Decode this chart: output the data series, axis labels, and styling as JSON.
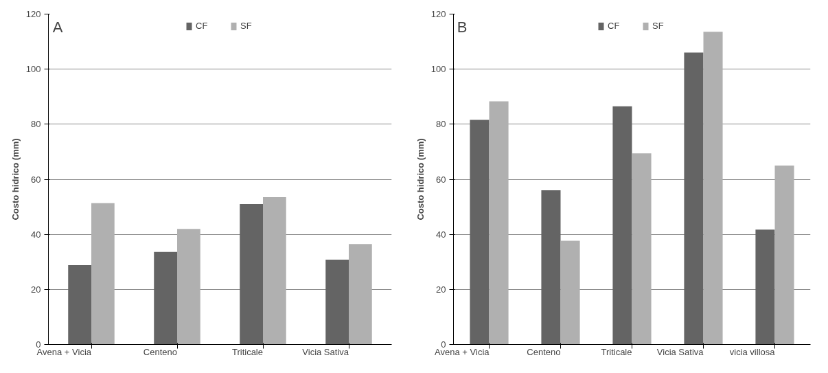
{
  "chart_data": [
    {
      "type": "bar",
      "title": "A",
      "ylabel": "Costo hidrico (mm)",
      "categories": [
        "Avena + Vicia",
        "Centeno",
        "Triticale",
        "Vicia Sativa"
      ],
      "series": [
        {
          "name": "CF",
          "color": "#646464",
          "values": [
            28.8,
            33.6,
            51,
            30.8
          ]
        },
        {
          "name": "SF",
          "color": "#b0b0b0",
          "values": [
            51.3,
            42,
            53.5,
            36.5
          ]
        }
      ],
      "ylim": [
        0,
        120
      ],
      "yticks": [
        0,
        20,
        40,
        60,
        80,
        100,
        120
      ],
      "grid": "y",
      "legend": "top"
    },
    {
      "type": "bar",
      "title": "B",
      "ylabel": "Costo hidrico (mm)",
      "categories": [
        "Avena + Vicia",
        "Centeno",
        "Triticale",
        "Vicia Sativa",
        "vicia villosa"
      ],
      "series": [
        {
          "name": "CF",
          "color": "#646464",
          "values": [
            81.6,
            56,
            86.5,
            106,
            41.7
          ]
        },
        {
          "name": "SF",
          "color": "#b0b0b0",
          "values": [
            88.3,
            37.7,
            69.4,
            113.6,
            65
          ]
        }
      ],
      "ylim": [
        0,
        120
      ],
      "yticks": [
        0,
        20,
        40,
        60,
        80,
        100,
        120
      ],
      "grid": "y",
      "legend": "top"
    }
  ]
}
